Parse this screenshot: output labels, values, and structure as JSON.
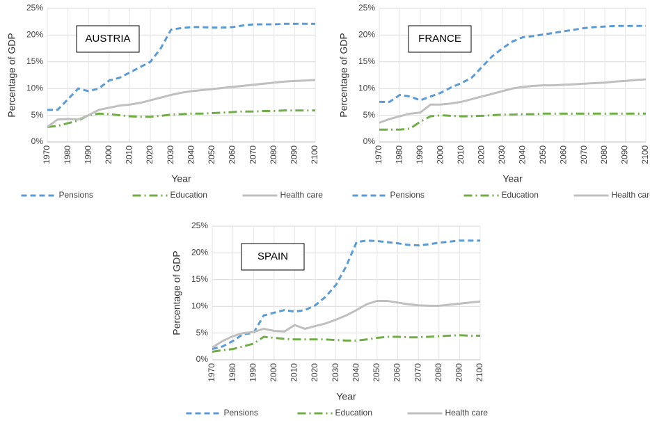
{
  "chart_data": [
    {
      "type": "line",
      "title": "AUSTRIA",
      "xlabel": "Year",
      "ylabel": "Percentage of GDP",
      "x": [
        1970,
        1975,
        1980,
        1985,
        1990,
        1995,
        2000,
        2005,
        2010,
        2015,
        2020,
        2025,
        2030,
        2035,
        2040,
        2045,
        2050,
        2055,
        2060,
        2065,
        2070,
        2075,
        2080,
        2085,
        2090,
        2095,
        2100
      ],
      "series": [
        {
          "name": "Pensions",
          "color": "#5b9bd5",
          "dash": "dash",
          "values": [
            6,
            6,
            8,
            10,
            9.5,
            10,
            11.5,
            12,
            13,
            14,
            15,
            17.5,
            21,
            21.3,
            21.5,
            21.5,
            21.4,
            21.4,
            21.5,
            21.8,
            22,
            22,
            22,
            22.1,
            22.1,
            22.1,
            22.1
          ]
        },
        {
          "name": "Education",
          "color": "#70ad47",
          "dash": "dashdot",
          "values": [
            2.8,
            3,
            3.5,
            4,
            5,
            5.3,
            5.2,
            5,
            4.8,
            4.7,
            4.7,
            4.9,
            5.1,
            5.2,
            5.3,
            5.3,
            5.4,
            5.5,
            5.6,
            5.7,
            5.7,
            5.8,
            5.8,
            5.9,
            5.9,
            5.9,
            5.9
          ]
        },
        {
          "name": "Health care",
          "color": "#bfbfbf",
          "dash": "solid",
          "values": [
            2.8,
            4.2,
            4.3,
            4.2,
            5,
            6,
            6.4,
            6.8,
            7,
            7.3,
            7.8,
            8.3,
            8.8,
            9.2,
            9.5,
            9.7,
            9.9,
            10.1,
            10.3,
            10.5,
            10.7,
            10.9,
            11.1,
            11.3,
            11.4,
            11.5,
            11.6
          ]
        }
      ],
      "xlim": [
        1970,
        2100
      ],
      "xticks": [
        1970,
        1980,
        1990,
        2000,
        2010,
        2020,
        2030,
        2040,
        2050,
        2060,
        2070,
        2080,
        2090,
        2100
      ],
      "ylim": [
        0,
        25
      ],
      "yticks": [
        {
          "value": 0,
          "label": "0%"
        },
        {
          "value": 5,
          "label": "5%"
        },
        {
          "value": 10,
          "label": "10%"
        },
        {
          "value": 15,
          "label": "15%"
        },
        {
          "value": 20,
          "label": "20%"
        },
        {
          "value": 25,
          "label": "25%"
        }
      ],
      "grid": true,
      "legend": "bottom"
    },
    {
      "type": "line",
      "title": "FRANCE",
      "xlabel": "Year",
      "ylabel": "Percentage of GDP",
      "x": [
        1970,
        1975,
        1980,
        1985,
        1990,
        1995,
        2000,
        2005,
        2010,
        2015,
        2020,
        2025,
        2030,
        2035,
        2040,
        2045,
        2050,
        2055,
        2060,
        2065,
        2070,
        2075,
        2080,
        2085,
        2090,
        2095,
        2100
      ],
      "series": [
        {
          "name": "Pensions",
          "color": "#5b9bd5",
          "dash": "dash",
          "values": [
            7.5,
            7.5,
            8.8,
            8.5,
            7.8,
            8.5,
            9.2,
            10.2,
            11,
            12,
            14,
            16,
            17.5,
            18.8,
            19.6,
            19.8,
            20.1,
            20.4,
            20.7,
            21,
            21.3,
            21.5,
            21.6,
            21.7,
            21.7,
            21.7,
            21.7
          ]
        },
        {
          "name": "Education",
          "color": "#70ad47",
          "dash": "dashdot",
          "values": [
            2.3,
            2.3,
            2.3,
            2.5,
            3.8,
            4.8,
            5,
            4.9,
            4.8,
            4.8,
            4.9,
            5,
            5.1,
            5.1,
            5.2,
            5.2,
            5.3,
            5.3,
            5.3,
            5.3,
            5.3,
            5.3,
            5.3,
            5.3,
            5.3,
            5.3,
            5.3
          ]
        },
        {
          "name": "Health care",
          "color": "#bfbfbf",
          "dash": "solid",
          "values": [
            3.6,
            4.3,
            4.8,
            5.3,
            5.5,
            7,
            7,
            7.2,
            7.5,
            8,
            8.5,
            9,
            9.5,
            10,
            10.3,
            10.5,
            10.6,
            10.6,
            10.7,
            10.8,
            10.9,
            11,
            11.1,
            11.3,
            11.4,
            11.6,
            11.7
          ]
        }
      ],
      "xlim": [
        1970,
        2100
      ],
      "xticks": [
        1970,
        1980,
        1990,
        2000,
        2010,
        2020,
        2030,
        2040,
        2050,
        2060,
        2070,
        2080,
        2090,
        2100
      ],
      "ylim": [
        0,
        25
      ],
      "yticks": [
        {
          "value": 0,
          "label": "0%"
        },
        {
          "value": 5,
          "label": "5%"
        },
        {
          "value": 10,
          "label": "10%"
        },
        {
          "value": 15,
          "label": "15%"
        },
        {
          "value": 20,
          "label": "20%"
        },
        {
          "value": 25,
          "label": "25%"
        }
      ],
      "grid": true,
      "legend": "bottom"
    },
    {
      "type": "line",
      "title": "SPAIN",
      "xlabel": "Year",
      "ylabel": "Percentage of GDP",
      "x": [
        1970,
        1975,
        1980,
        1985,
        1990,
        1995,
        2000,
        2005,
        2010,
        2015,
        2020,
        2025,
        2030,
        2035,
        2040,
        2045,
        2050,
        2055,
        2060,
        2065,
        2070,
        2075,
        2080,
        2085,
        2090,
        2095,
        2100
      ],
      "series": [
        {
          "name": "Pensions",
          "color": "#5b9bd5",
          "dash": "dash",
          "values": [
            2,
            2.5,
            3.5,
            4.8,
            5,
            8.3,
            8.8,
            9.3,
            9,
            9.3,
            10.2,
            11.8,
            14,
            17.5,
            22,
            22.3,
            22.2,
            22,
            21.8,
            21.5,
            21.4,
            21.6,
            21.9,
            22.1,
            22.3,
            22.3,
            22.3
          ]
        },
        {
          "name": "Education",
          "color": "#70ad47",
          "dash": "dashdot",
          "values": [
            1.5,
            1.8,
            2,
            2.5,
            3,
            4.3,
            4.1,
            3.9,
            3.8,
            3.8,
            3.8,
            3.8,
            3.7,
            3.6,
            3.6,
            3.8,
            4.1,
            4.3,
            4.3,
            4.2,
            4.2,
            4.3,
            4.4,
            4.5,
            4.6,
            4.5,
            4.5
          ]
        },
        {
          "name": "Health care",
          "color": "#bfbfbf",
          "dash": "solid",
          "values": [
            2.3,
            3.5,
            4.4,
            5,
            5.2,
            5.8,
            5.4,
            5.3,
            6.5,
            5.8,
            6.3,
            6.8,
            7.5,
            8.3,
            9.3,
            10.4,
            11,
            11,
            10.7,
            10.4,
            10.2,
            10.1,
            10.1,
            10.3,
            10.5,
            10.7,
            10.9
          ]
        }
      ],
      "xlim": [
        1970,
        2100
      ],
      "xticks": [
        1970,
        1980,
        1990,
        2000,
        2010,
        2020,
        2030,
        2040,
        2050,
        2060,
        2070,
        2080,
        2090,
        2100
      ],
      "ylim": [
        0,
        25
      ],
      "yticks": [
        {
          "value": 0,
          "label": "0%"
        },
        {
          "value": 5,
          "label": "5%"
        },
        {
          "value": 10,
          "label": "10%"
        },
        {
          "value": 15,
          "label": "15%"
        },
        {
          "value": 20,
          "label": "20%"
        },
        {
          "value": 25,
          "label": "25%"
        }
      ],
      "grid": true,
      "legend": "bottom"
    }
  ]
}
